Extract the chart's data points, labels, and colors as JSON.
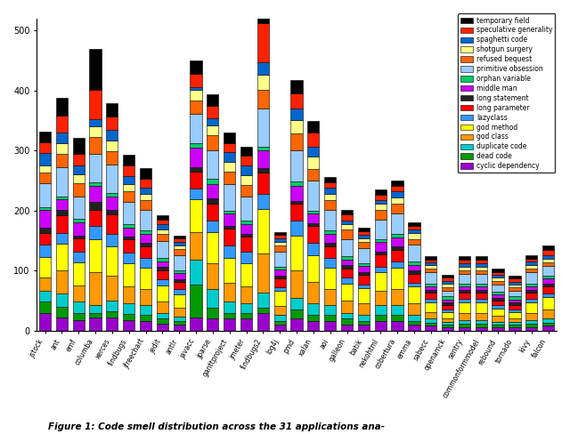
{
  "categories": [
    "jstock",
    "ant",
    "emf",
    "columba",
    "xerces",
    "findbugs",
    "jfreechart",
    "jedit",
    "antlr",
    "javacc",
    "jparse",
    "ganttproject",
    "jmeter",
    "findbugs2",
    "log4j",
    "pmd",
    "xalan",
    "aoi",
    "galleon",
    "batik",
    "nekohtml",
    "cobertura",
    "emma",
    "sabecc",
    "openamck",
    "sentry",
    "commonformmodel",
    "rebound",
    "tornado",
    "kivy",
    "falcon"
  ],
  "smell_labels": [
    "cyclic dependency",
    "dead code",
    "duplicate code",
    "god class",
    "god method",
    "lazyclass",
    "long parameter",
    "long statement",
    "middle man",
    "orphan variable",
    "primitive obsession",
    "refused bequest",
    "shotgun surgery",
    "spaghetti code",
    "speculative generality",
    "temporary field"
  ],
  "colors": [
    "#9900CC",
    "#009900",
    "#00CCCC",
    "#FF9900",
    "#FFFF00",
    "#3399FF",
    "#FF0000",
    "#222222",
    "#CC00FF",
    "#00CC66",
    "#99CCFF",
    "#FF6600",
    "#FFFF88",
    "#0066CC",
    "#FF2200",
    "#000000"
  ],
  "bar_data": {
    "jstock": [
      30,
      18,
      18,
      22,
      35,
      20,
      20,
      8,
      30,
      5,
      40,
      18,
      12,
      20,
      18,
      18
    ],
    "ant": [
      22,
      18,
      22,
      38,
      45,
      18,
      30,
      8,
      18,
      5,
      48,
      22,
      18,
      18,
      28,
      30
    ],
    "emf": [
      18,
      12,
      18,
      28,
      38,
      18,
      22,
      5,
      22,
      5,
      38,
      22,
      15,
      15,
      18,
      28
    ],
    "columba": [
      22,
      8,
      12,
      55,
      55,
      22,
      28,
      12,
      28,
      5,
      48,
      28,
      18,
      12,
      48,
      68
    ],
    "xerces": [
      22,
      10,
      18,
      42,
      48,
      22,
      32,
      8,
      22,
      5,
      48,
      22,
      18,
      18,
      22,
      22
    ],
    "findbugs": [
      18,
      10,
      18,
      28,
      38,
      18,
      22,
      5,
      15,
      5,
      38,
      18,
      12,
      12,
      18,
      18
    ],
    "jfreechart": [
      16,
      10,
      16,
      28,
      35,
      16,
      20,
      5,
      16,
      5,
      35,
      16,
      10,
      10,
      15,
      18
    ],
    "jedit": [
      12,
      8,
      10,
      18,
      28,
      10,
      15,
      5,
      10,
      5,
      28,
      12,
      8,
      8,
      8,
      8
    ],
    "antlr": [
      10,
      6,
      8,
      15,
      22,
      8,
      12,
      5,
      10,
      5,
      25,
      10,
      6,
      6,
      6,
      5
    ],
    "javacc": [
      22,
      55,
      42,
      45,
      55,
      18,
      28,
      8,
      32,
      8,
      48,
      22,
      18,
      5,
      22,
      22
    ],
    "jparse": [
      20,
      18,
      32,
      42,
      52,
      20,
      28,
      8,
      25,
      8,
      48,
      25,
      16,
      12,
      20,
      20
    ],
    "ganttproject": [
      20,
      10,
      18,
      32,
      42,
      20,
      28,
      5,
      20,
      5,
      45,
      20,
      16,
      16,
      16,
      18
    ],
    "jmeter": [
      20,
      10,
      16,
      28,
      38,
      20,
      25,
      5,
      16,
      5,
      40,
      20,
      16,
      16,
      16,
      15
    ],
    "findbugs2": [
      30,
      8,
      25,
      65,
      75,
      25,
      35,
      8,
      30,
      5,
      65,
      30,
      25,
      22,
      65,
      55
    ],
    "log4j": [
      10,
      6,
      10,
      15,
      25,
      6,
      15,
      5,
      10,
      5,
      25,
      10,
      6,
      6,
      6,
      5
    ],
    "pmd": [
      20,
      15,
      20,
      45,
      58,
      25,
      28,
      5,
      25,
      8,
      52,
      28,
      22,
      20,
      25,
      22
    ],
    "xalan": [
      16,
      10,
      20,
      35,
      45,
      20,
      28,
      5,
      16,
      5,
      50,
      20,
      20,
      16,
      25,
      18
    ],
    "aoi": [
      16,
      10,
      16,
      28,
      35,
      16,
      20,
      5,
      16,
      5,
      35,
      16,
      10,
      10,
      10,
      8
    ],
    "galleon": [
      10,
      10,
      10,
      20,
      28,
      10,
      16,
      5,
      10,
      5,
      28,
      16,
      10,
      6,
      10,
      8
    ],
    "batik": [
      10,
      6,
      10,
      20,
      25,
      6,
      16,
      5,
      10,
      5,
      25,
      10,
      6,
      6,
      6,
      5
    ],
    "nekohtml": [
      16,
      10,
      16,
      25,
      30,
      10,
      20,
      5,
      16,
      5,
      32,
      16,
      10,
      6,
      10,
      8
    ],
    "cobertura": [
      16,
      10,
      16,
      28,
      35,
      10,
      20,
      5,
      16,
      5,
      35,
      16,
      10,
      10,
      10,
      8
    ],
    "emma": [
      10,
      6,
      10,
      20,
      28,
      6,
      15,
      5,
      10,
      5,
      28,
      10,
      10,
      6,
      6,
      5
    ],
    "sabecc": [
      8,
      5,
      8,
      10,
      16,
      6,
      10,
      5,
      6,
      5,
      18,
      6,
      6,
      5,
      5,
      5
    ],
    "openamck": [
      5,
      5,
      5,
      6,
      10,
      5,
      6,
      5,
      5,
      5,
      10,
      6,
      5,
      5,
      5,
      5
    ],
    "sentry": [
      6,
      5,
      6,
      12,
      18,
      6,
      10,
      5,
      6,
      5,
      16,
      6,
      6,
      6,
      6,
      5
    ],
    "commonformmodel": [
      6,
      5,
      6,
      12,
      18,
      6,
      10,
      5,
      6,
      5,
      16,
      6,
      6,
      6,
      6,
      5
    ],
    "rebound": [
      5,
      5,
      5,
      10,
      12,
      5,
      8,
      5,
      5,
      5,
      12,
      6,
      5,
      5,
      5,
      5
    ],
    "tornado": [
      5,
      5,
      5,
      6,
      10,
      5,
      6,
      5,
      5,
      5,
      10,
      5,
      5,
      5,
      5,
      5
    ],
    "kivy": [
      6,
      5,
      6,
      12,
      18,
      6,
      10,
      5,
      6,
      5,
      18,
      6,
      6,
      6,
      5,
      5
    ],
    "falcon": [
      8,
      5,
      8,
      15,
      20,
      6,
      12,
      5,
      8,
      5,
      16,
      6,
      6,
      6,
      8,
      8
    ]
  },
  "figcaption": "Figure 1: Code smell distribution across the 31 applications ana-",
  "ylim": [
    0,
    520
  ],
  "yticks": [
    0,
    100,
    200,
    300,
    400,
    500
  ]
}
